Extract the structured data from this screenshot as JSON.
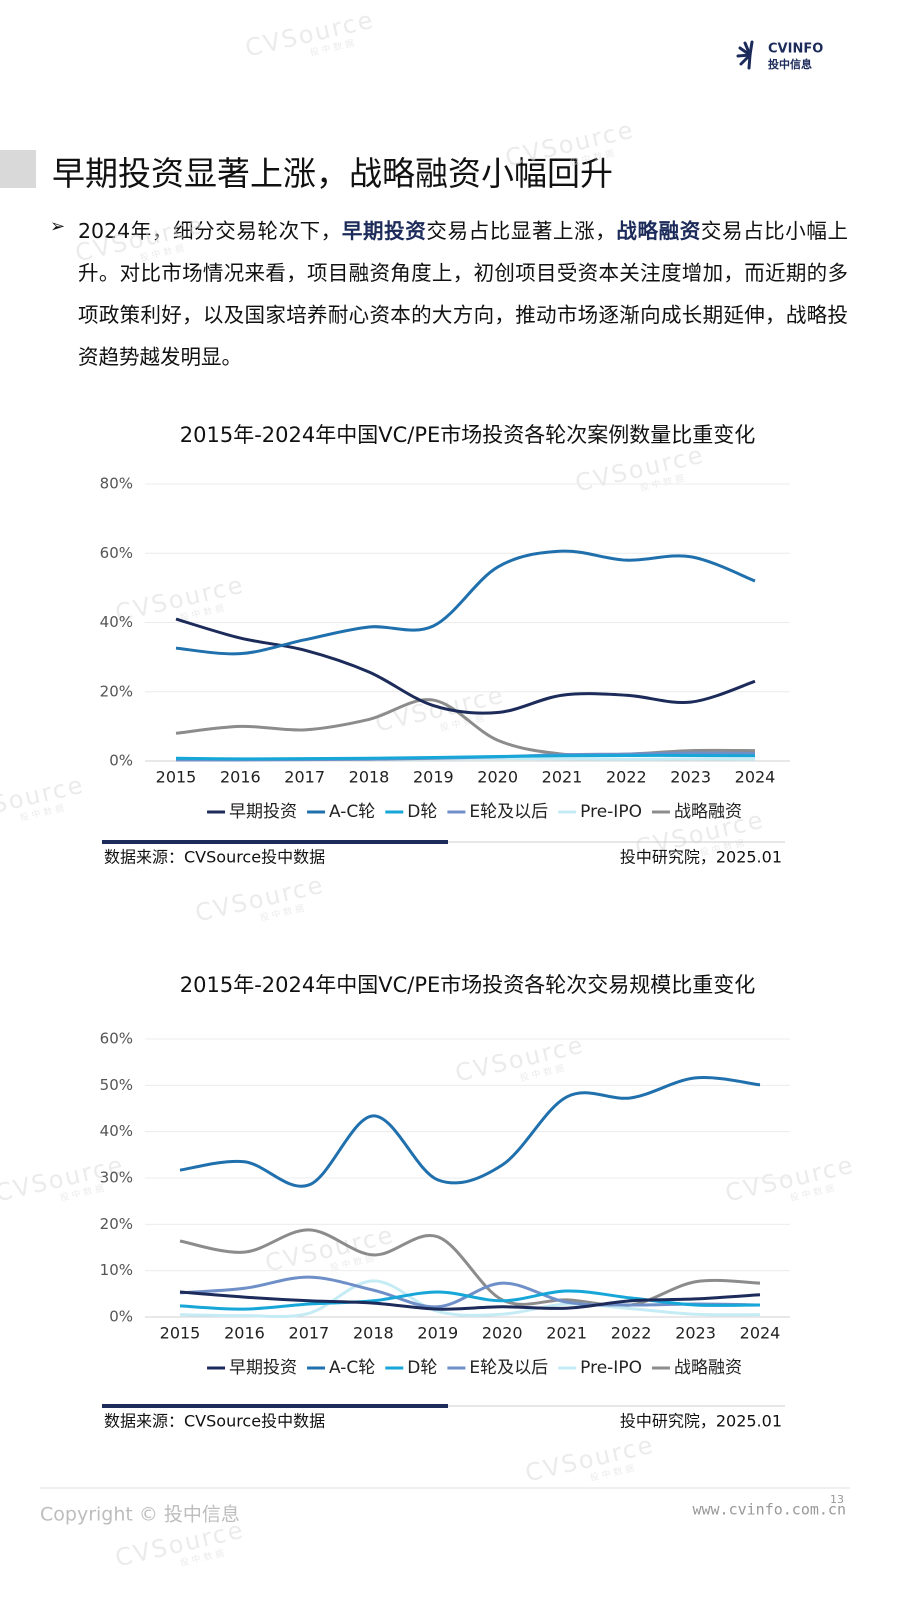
{
  "logo": {
    "brand": "CVINFO",
    "sub": "投中信息"
  },
  "watermark": {
    "brand": "CVSource",
    "sub": "投中数据"
  },
  "heading": "早期投资显著上涨，战略融资小幅回升",
  "paragraph": [
    "2024年，细分交易轮次下，",
    "早期投资",
    "交易占比显著上涨，",
    "战略融资",
    "交易占比小幅上升。对比市场情况来看，项目融资角度上，初创项目受资本关注度增加，而近期的多项政策利好，以及国家培养耐心资本的大方向，推动市场逐渐向成长期延伸，战略投资趋势越发明显。"
  ],
  "chart_data": [
    {
      "type": "line",
      "title": "2015年-2024年中国VC/PE市场投资各轮次案例数量比重变化",
      "categories": [
        "2015",
        "2016",
        "2017",
        "2018",
        "2019",
        "2020",
        "2021",
        "2022",
        "2023",
        "2024"
      ],
      "series": [
        {
          "name": "早期投资",
          "color": "#1c2b5a",
          "values": [
            41,
            35.5,
            32,
            25.7,
            16,
            14,
            19,
            19,
            17,
            23
          ]
        },
        {
          "name": "A-C轮",
          "color": "#1f70ad",
          "values": [
            32.6,
            31,
            35,
            38.7,
            39,
            56,
            60.6,
            58,
            59,
            52
          ]
        },
        {
          "name": "D轮",
          "color": "#16a6d8",
          "values": [
            0.8,
            0.6,
            0.7,
            0.8,
            1.0,
            1.3,
            1.5,
            1.6,
            1.6,
            1.5
          ]
        },
        {
          "name": "E轮及以后",
          "color": "#6f8fc8",
          "values": [
            0.3,
            0.3,
            0.4,
            0.5,
            0.8,
            1.2,
            1.8,
            2.0,
            2.3,
            2.2
          ]
        },
        {
          "name": "Pre-IPO",
          "color": "#c5ebf5",
          "values": [
            0.5,
            0.4,
            0.4,
            0.5,
            0.6,
            0.7,
            0.6,
            0.5,
            0.6,
            0.5
          ]
        },
        {
          "name": "战略融资",
          "color": "#8c8c8c",
          "values": [
            8,
            10,
            9,
            12,
            17.6,
            6,
            2,
            2,
            3,
            3
          ]
        }
      ],
      "ylim": [
        0,
        80
      ],
      "yticks": [
        {
          "value": 0,
          "label": "0%"
        },
        {
          "value": 20,
          "label": "20%"
        },
        {
          "value": 40,
          "label": "40%"
        },
        {
          "value": 60,
          "label": "60%"
        },
        {
          "value": 80,
          "label": "80%"
        }
      ],
      "grid": true,
      "legend": "bottom",
      "source": "数据来源：CVSource投中数据",
      "credit": "投中研究院，2025.01"
    },
    {
      "type": "line",
      "title": "2015年-2024年中国VC/PE市场投资各轮次交易规模比重变化",
      "categories": [
        "2015",
        "2016",
        "2017",
        "2018",
        "2019",
        "2020",
        "2021",
        "2022",
        "2023",
        "2024"
      ],
      "series": [
        {
          "name": "早期投资",
          "color": "#1c2b5a",
          "values": [
            5.4,
            4.3,
            3.5,
            3,
            1.7,
            2.2,
            1.9,
            3.5,
            3.9,
            4.8
          ]
        },
        {
          "name": "A-C轮",
          "color": "#1f70ad",
          "values": [
            31.7,
            33.5,
            28.5,
            43.4,
            29.6,
            32.8,
            47.5,
            47.3,
            51.6,
            50.1
          ]
        },
        {
          "name": "D轮",
          "color": "#16a6d8",
          "values": [
            2.4,
            1.7,
            2.8,
            3.5,
            5.4,
            3.5,
            5.6,
            4.1,
            2.6,
            2.6
          ]
        },
        {
          "name": "E轮及以后",
          "color": "#6f8fc8",
          "values": [
            5.2,
            6.2,
            8.6,
            5.8,
            2.2,
            7.3,
            3.2,
            2.6,
            2.8,
            2.6
          ]
        },
        {
          "name": "Pre-IPO",
          "color": "#c5ebf5",
          "values": [
            0.5,
            0.3,
            0.8,
            7.8,
            1.2,
            0.6,
            2.8,
            1.8,
            0.6,
            0.5
          ]
        },
        {
          "name": "战略融资",
          "color": "#8c8c8c",
          "values": [
            16.4,
            14,
            18.8,
            13.4,
            17.3,
            3.7,
            3.7,
            2.6,
            7.6,
            7.3
          ]
        }
      ],
      "ylim": [
        0,
        60
      ],
      "yticks": [
        {
          "value": 0,
          "label": "0%"
        },
        {
          "value": 10,
          "label": "10%"
        },
        {
          "value": 20,
          "label": "20%"
        },
        {
          "value": 30,
          "label": "30%"
        },
        {
          "value": 40,
          "label": "40%"
        },
        {
          "value": 50,
          "label": "50%"
        },
        {
          "value": 60,
          "label": "60%"
        }
      ],
      "grid": true,
      "legend": "bottom",
      "source": "数据来源：CVSource投中数据",
      "credit": "投中研究院，2025.01"
    }
  ],
  "footer": {
    "copyright": "Copyright © 投中信息",
    "url": "www.cvinfo.com.cn",
    "page": "13"
  }
}
